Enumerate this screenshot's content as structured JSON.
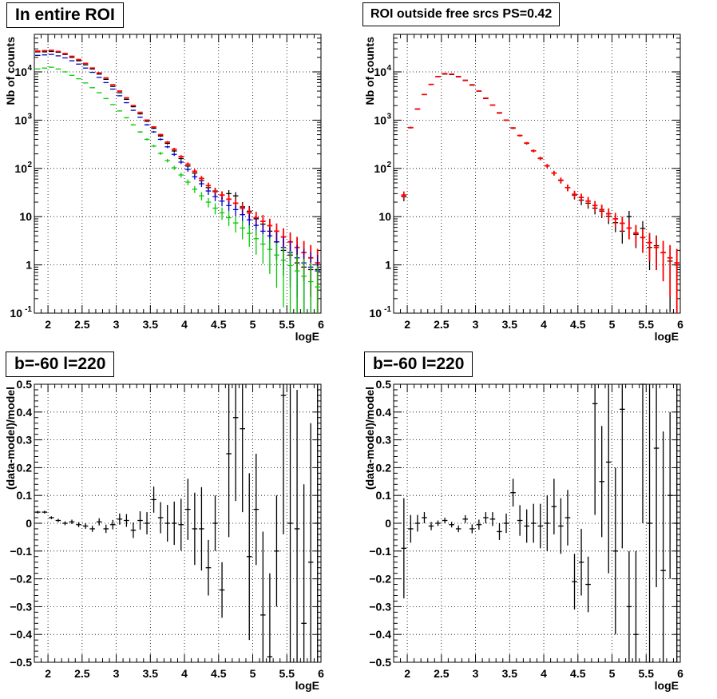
{
  "panels": [
    {
      "title": "In entire ROI",
      "xlabel": "logE",
      "ylabel": "Nb of counts"
    },
    {
      "title": "ROI outside free srcs PS=0.42",
      "xlabel": "logE",
      "ylabel": "Nb of counts"
    },
    {
      "title": "b=-60 l=220",
      "xlabel": "logE",
      "ylabel": "(data-model)/model"
    },
    {
      "title": "b=-60 l=220",
      "xlabel": "logE",
      "ylabel": "(data-model)/model"
    }
  ],
  "chart_data": [
    {
      "type": "scatter",
      "title": "In entire ROI",
      "xlabel": "logE",
      "ylabel": "Nb of counts",
      "xlim": [
        1.8,
        6.0
      ],
      "ylim": [
        0.1,
        60000
      ],
      "yscale": "log",
      "grid": true,
      "x_ticks": [
        "2",
        "2.5",
        "3",
        "3.5",
        "4",
        "4.5",
        "5",
        "5.5",
        "6"
      ],
      "y_ticks": [
        "10^-1",
        "1",
        "10",
        "10^2",
        "10^3",
        "10^4"
      ],
      "bin_width": 0.1,
      "series": [
        {
          "color": "#000000",
          "x": [
            1.85,
            1.95,
            2.05,
            2.15,
            2.25,
            2.35,
            2.45,
            2.55,
            2.65,
            2.75,
            2.85,
            2.95,
            3.05,
            3.15,
            3.25,
            3.35,
            3.45,
            3.55,
            3.65,
            3.75,
            3.85,
            3.95,
            4.05,
            4.15,
            4.25,
            4.35,
            4.45,
            4.55,
            4.65,
            4.75,
            4.85,
            4.95,
            5.05,
            5.15,
            5.25,
            5.35,
            5.45,
            5.55,
            5.65,
            5.75,
            5.85,
            5.95
          ],
          "y": [
            26000,
            26000,
            26500,
            25500,
            23000,
            20000,
            17000,
            14000,
            11500,
            9000,
            7000,
            5000,
            3700,
            2700,
            1900,
            1350,
            950,
            680,
            470,
            330,
            230,
            160,
            112,
            80,
            56,
            40,
            34,
            28,
            30,
            27,
            16,
            13,
            9,
            7,
            5,
            3,
            2,
            1.6,
            1.1,
            0.9,
            0.8,
            0.8
          ]
        },
        {
          "color": "#ff0000",
          "x": [
            1.85,
            1.95,
            2.05,
            2.15,
            2.25,
            2.35,
            2.45,
            2.55,
            2.65,
            2.75,
            2.85,
            2.95,
            3.05,
            3.15,
            3.25,
            3.35,
            3.45,
            3.55,
            3.65,
            3.75,
            3.85,
            3.95,
            4.05,
            4.15,
            4.25,
            4.35,
            4.45,
            4.55,
            4.65,
            4.75,
            4.85,
            4.95,
            5.05,
            5.15,
            5.25,
            5.35,
            5.45,
            5.55,
            5.65,
            5.75,
            5.85,
            5.95
          ],
          "y": [
            27000,
            27500,
            28000,
            26500,
            24000,
            21000,
            18000,
            15000,
            12000,
            9500,
            7500,
            5400,
            4000,
            2900,
            2000,
            1450,
            1000,
            720,
            500,
            350,
            250,
            175,
            122,
            87,
            62,
            44,
            33,
            28,
            23,
            19,
            15,
            12,
            9.5,
            8,
            6.5,
            5,
            3.8,
            3,
            2.3,
            1.8,
            1.4,
            1.1
          ]
        },
        {
          "color": "#0000cc",
          "x": [
            1.85,
            1.95,
            2.05,
            2.15,
            2.25,
            2.35,
            2.45,
            2.55,
            2.65,
            2.75,
            2.85,
            2.95,
            3.05,
            3.15,
            3.25,
            3.35,
            3.45,
            3.55,
            3.65,
            3.75,
            3.85,
            3.95,
            4.05,
            4.15,
            4.25,
            4.35,
            4.45,
            4.55,
            4.65,
            4.75,
            4.85,
            4.95,
            5.05,
            5.15,
            5.25,
            5.35,
            5.45,
            5.55,
            5.65,
            5.75,
            5.85,
            5.95
          ],
          "y": [
            22000,
            22500,
            23000,
            21500,
            19500,
            17000,
            14500,
            12000,
            9800,
            7700,
            6000,
            4400,
            3200,
            2300,
            1600,
            1150,
            800,
            570,
            400,
            280,
            195,
            135,
            95,
            67,
            48,
            34,
            26,
            21,
            17,
            14,
            11,
            8.6,
            6.6,
            5,
            4,
            3,
            2.3,
            1.8,
            1.4,
            1.1,
            0.9,
            0.75
          ]
        },
        {
          "color": "#00cc00",
          "x": [
            1.85,
            1.95,
            2.05,
            2.15,
            2.25,
            2.35,
            2.45,
            2.55,
            2.65,
            2.75,
            2.85,
            2.95,
            3.05,
            3.15,
            3.25,
            3.35,
            3.45,
            3.55,
            3.65,
            3.75,
            3.85,
            3.95,
            4.05,
            4.15,
            4.25,
            4.35,
            4.45,
            4.55,
            4.65,
            4.75,
            4.85,
            4.95,
            5.05,
            5.15,
            5.25,
            5.35,
            5.45,
            5.55,
            5.65,
            5.75,
            5.85,
            5.95
          ],
          "y": [
            11500,
            12000,
            12500,
            11500,
            10000,
            8500,
            7200,
            5900,
            4700,
            3700,
            2800,
            2100,
            1550,
            1120,
            800,
            570,
            400,
            290,
            205,
            145,
            103,
            73,
            52,
            37,
            27,
            20,
            15,
            12,
            9.5,
            7.4,
            5.8,
            4.5,
            3.5,
            2.7,
            2.1,
            1.6,
            1.25,
            0.97,
            0.75,
            0.58,
            0.45,
            0.35
          ]
        }
      ]
    },
    {
      "type": "scatter",
      "title": "ROI outside free srcs PS=0.42",
      "xlabel": "logE",
      "ylabel": "Nb of counts",
      "xlim": [
        1.8,
        6.0
      ],
      "ylim": [
        0.1,
        60000
      ],
      "yscale": "log",
      "grid": true,
      "x_ticks": [
        "2",
        "2.5",
        "3",
        "3.5",
        "4",
        "4.5",
        "5",
        "5.5",
        "6"
      ],
      "y_ticks": [
        "10^-1",
        "1",
        "10",
        "10^2",
        "10^3",
        "10^4"
      ],
      "bin_width": 0.1,
      "series": [
        {
          "color": "#000000",
          "x": [
            1.95,
            2.05,
            2.15,
            2.25,
            2.35,
            2.45,
            2.55,
            2.65,
            2.75,
            2.85,
            2.95,
            3.05,
            3.15,
            3.25,
            3.35,
            3.45,
            3.55,
            3.65,
            3.75,
            3.85,
            3.95,
            4.05,
            4.15,
            4.25,
            4.35,
            4.45,
            4.55,
            4.65,
            4.75,
            4.85,
            4.95,
            5.05,
            5.15,
            5.25,
            5.35,
            5.45,
            5.55,
            5.65,
            5.75,
            5.85,
            5.95
          ],
          "y": [
            26,
            700,
            1700,
            3400,
            5500,
            8000,
            9000,
            8800,
            7900,
            6600,
            5300,
            4000,
            2800,
            2050,
            1400,
            1000,
            680,
            480,
            330,
            230,
            160,
            112,
            80,
            56,
            40,
            28,
            22,
            19,
            15,
            13,
            10.2,
            7.5,
            5,
            10,
            4.3,
            5.7,
            2.3,
            2.5,
            1.8,
            1.2,
            1
          ]
        },
        {
          "color": "#ff0000",
          "x": [
            1.95,
            2.05,
            2.15,
            2.25,
            2.35,
            2.45,
            2.55,
            2.65,
            2.75,
            2.85,
            2.95,
            3.05,
            3.15,
            3.25,
            3.35,
            3.45,
            3.55,
            3.65,
            3.75,
            3.85,
            3.95,
            4.05,
            4.15,
            4.25,
            4.35,
            4.45,
            4.55,
            4.65,
            4.75,
            4.85,
            4.95,
            5.05,
            5.15,
            5.25,
            5.35,
            5.45,
            5.55,
            5.65,
            5.75,
            5.85,
            5.95
          ],
          "y": [
            28,
            700,
            1700,
            3400,
            5500,
            8000,
            9200,
            9000,
            8000,
            6700,
            5400,
            4000,
            2850,
            2050,
            1420,
            1000,
            690,
            480,
            335,
            232,
            162,
            113,
            80,
            57,
            40,
            29,
            25,
            21,
            17,
            14,
            11.5,
            9,
            7.3,
            5.8,
            4.6,
            3.7,
            2.9,
            2.3,
            1.8,
            1.4,
            1.1
          ]
        }
      ]
    },
    {
      "type": "scatter",
      "title": "b=-60 l=220",
      "xlabel": "logE",
      "ylabel": "(data-model)/model",
      "xlim": [
        1.8,
        6.0
      ],
      "ylim": [
        -0.5,
        0.5
      ],
      "grid": true,
      "x_ticks": [
        "2",
        "2.5",
        "3",
        "3.5",
        "4",
        "4.5",
        "5",
        "5.5",
        "6"
      ],
      "y_ticks": [
        "-0.5",
        "-0.4",
        "-0.3",
        "-0.2",
        "-0.1",
        "0",
        "0.1",
        "0.2",
        "0.3",
        "0.4",
        "0.5"
      ],
      "bin_width": 0.1,
      "series": [
        {
          "color": "#000000",
          "x": [
            1.85,
            1.95,
            2.05,
            2.15,
            2.25,
            2.35,
            2.45,
            2.55,
            2.65,
            2.75,
            2.85,
            2.95,
            3.05,
            3.15,
            3.25,
            3.35,
            3.45,
            3.55,
            3.65,
            3.75,
            3.85,
            3.95,
            4.05,
            4.15,
            4.25,
            4.35,
            4.45,
            4.55,
            4.65,
            4.75,
            4.85,
            4.95,
            5.05,
            5.15,
            5.25,
            5.35,
            5.45,
            5.55,
            5.65,
            5.75,
            5.85,
            5.95
          ],
          "y": [
            0.04,
            0.04,
            0.02,
            0.01,
            0.0,
            0.005,
            -0.005,
            -0.01,
            -0.02,
            0.005,
            -0.02,
            -0.005,
            0.015,
            0.01,
            -0.025,
            0.01,
            0.0,
            0.085,
            0.02,
            0.0,
            0.0,
            -0.005,
            0.05,
            -0.02,
            -0.02,
            -0.16,
            0.0,
            -0.24,
            0.25,
            0.38,
            0.34,
            -0.12,
            0.05,
            -0.33,
            -0.48,
            -0.1,
            0.46,
            0.0,
            -0.02,
            -0.36,
            -0.14,
            0.0
          ],
          "err": [
            0.005,
            0.005,
            0.005,
            0.006,
            0.007,
            0.008,
            0.009,
            0.01,
            0.011,
            0.013,
            0.015,
            0.017,
            0.02,
            0.023,
            0.028,
            0.033,
            0.04,
            0.047,
            0.056,
            0.066,
            0.078,
            0.093,
            0.11,
            0.13,
            0.15,
            0.1,
            0.1,
            0.1,
            0.3,
            0.3,
            0.3,
            0.3,
            0.2,
            0.3,
            0.3,
            0.2,
            0.5,
            0.5,
            0.5,
            0.5,
            0.5,
            0.5
          ]
        }
      ]
    },
    {
      "type": "scatter",
      "title": "b=-60 l=220",
      "xlabel": "logE",
      "ylabel": "(data-model)/model",
      "xlim": [
        1.8,
        6.0
      ],
      "ylim": [
        -0.5,
        0.5
      ],
      "grid": true,
      "x_ticks": [
        "2",
        "2.5",
        "3",
        "3.5",
        "4",
        "4.5",
        "5",
        "5.5",
        "6"
      ],
      "y_ticks": [
        "-0.5",
        "-0.4",
        "-0.3",
        "-0.2",
        "-0.1",
        "0",
        "0.1",
        "0.2",
        "0.3",
        "0.4",
        "0.5"
      ],
      "bin_width": 0.1,
      "series": [
        {
          "color": "#000000",
          "x": [
            1.95,
            2.05,
            2.15,
            2.25,
            2.35,
            2.45,
            2.55,
            2.65,
            2.75,
            2.85,
            2.95,
            3.05,
            3.15,
            3.25,
            3.35,
            3.45,
            3.55,
            3.65,
            3.75,
            3.85,
            3.95,
            4.05,
            4.15,
            4.25,
            4.35,
            4.45,
            4.55,
            4.65,
            4.75,
            4.85,
            4.95,
            5.05,
            5.15,
            5.25,
            5.35,
            5.45,
            5.55,
            5.65,
            5.75,
            5.85,
            5.95
          ],
          "y": [
            -0.09,
            -0.02,
            0.0,
            0.02,
            -0.01,
            0.0,
            0.01,
            -0.005,
            -0.02,
            0.015,
            -0.02,
            -0.005,
            0.02,
            0.015,
            -0.03,
            0.0,
            0.11,
            0.01,
            -0.01,
            0.0,
            -0.01,
            0.0,
            0.06,
            -0.01,
            0.02,
            -0.21,
            -0.14,
            -0.22,
            0.43,
            0.15,
            0.22,
            -0.1,
            0.41,
            -0.3,
            -0.4,
            0.5,
            0.0,
            0.27,
            -0.17,
            0.1,
            0.0
          ],
          "err": [
            0.18,
            0.05,
            0.03,
            0.02,
            0.015,
            0.01,
            0.01,
            0.01,
            0.012,
            0.014,
            0.016,
            0.018,
            0.02,
            0.025,
            0.03,
            0.035,
            0.05,
            0.055,
            0.06,
            0.07,
            0.08,
            0.1,
            0.1,
            0.1,
            0.1,
            0.1,
            0.12,
            0.1,
            0.4,
            0.2,
            0.4,
            0.3,
            0.5,
            0.2,
            0.3,
            0.5,
            0.5,
            0.5,
            0.5,
            0.3,
            0.5
          ]
        }
      ]
    }
  ]
}
